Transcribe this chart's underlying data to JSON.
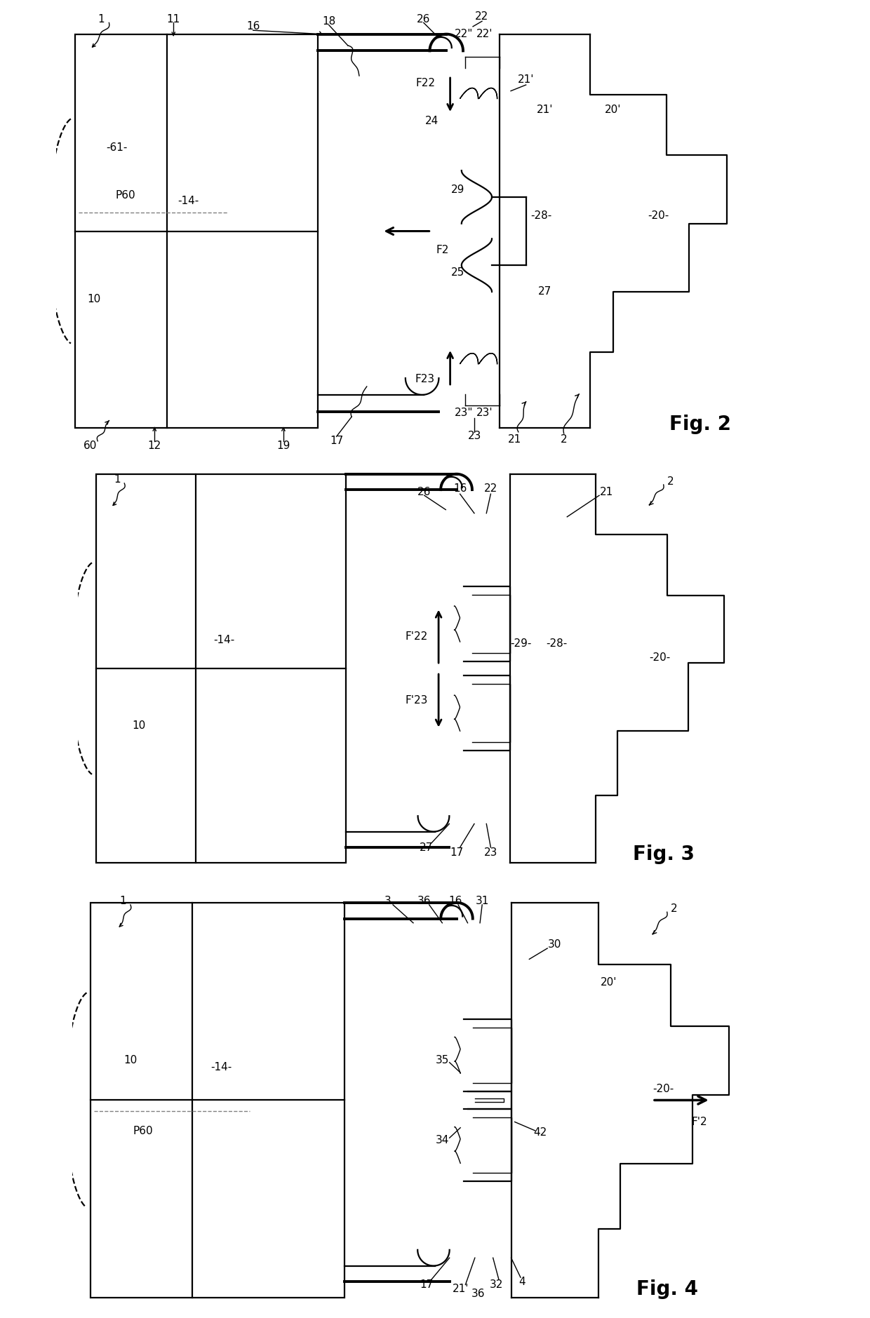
{
  "background_color": "#ffffff",
  "line_color": "#000000",
  "fig2_label": "Fig. 2",
  "fig3_label": "Fig. 3",
  "fig4_label": "Fig. 4",
  "font_size_ref": 11,
  "font_size_fig": 20,
  "lw_main": 1.6,
  "lw_thick": 2.8,
  "lw_thin": 1.0
}
